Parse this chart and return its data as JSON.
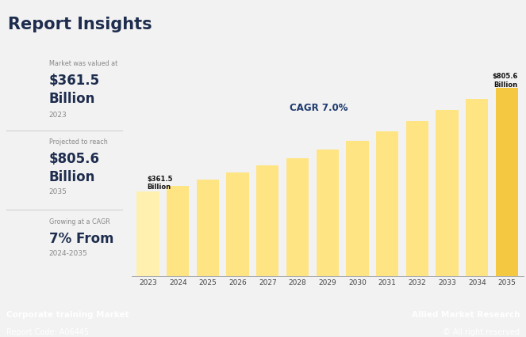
{
  "title": "Report Insights",
  "years": [
    2023,
    2024,
    2025,
    2026,
    2027,
    2028,
    2029,
    2030,
    2031,
    2032,
    2033,
    2034,
    2035
  ],
  "values": [
    361.5,
    386.8,
    414.0,
    443.0,
    474.0,
    507.2,
    542.7,
    580.7,
    621.3,
    664.8,
    711.3,
    761.1,
    805.6
  ],
  "bar_color_normal": "#FFE484",
  "bar_color_highlight": "#F5C842",
  "bar_color_2023": "#FFF0B0",
  "cagr_text": "CAGR 7.0%",
  "label_2023": "$361.5\nBillion",
  "label_2035": "$805.6\nBillion",
  "bg_color": "#F2F2F2",
  "footer_bg": "#1E2D4E",
  "footer_left_bold": "Corporate training Market",
  "footer_left_normal": "Report Code: A06445",
  "footer_right_bold": "Allied Market Research",
  "footer_right_normal": "© All right reserved",
  "insight_label1": "Market was valued at",
  "insight_value1a": "$361.5",
  "insight_value1b": "Billion",
  "insight_year1": "2023",
  "insight_label2": "Projected to reach",
  "insight_value2a": "$805.6",
  "insight_value2b": "Billion",
  "insight_year2": "2035",
  "insight_label3": "Growing at a CAGR",
  "insight_value3": "7% From",
  "insight_year3": "2024-2035",
  "divider_color": "#CCCCCC",
  "text_dark": "#1E2D4E",
  "text_gray": "#888888"
}
